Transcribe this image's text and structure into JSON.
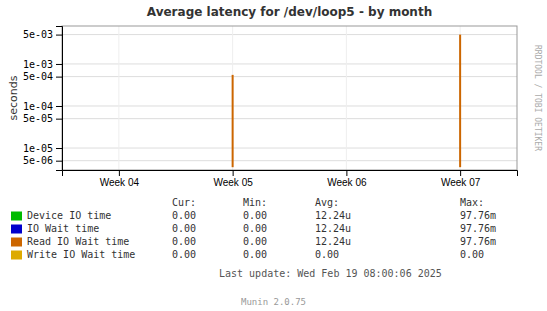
{
  "chart_data": {
    "type": "range",
    "title": "Average latency for /dev/loop5 - by month",
    "y_label": "seconds",
    "categories": [
      "Week 04",
      "Week 05",
      "Week 06",
      "Week 07"
    ],
    "series": [
      {
        "color": "#cc6600",
        "values": [
          null,
          0.00055,
          null,
          0.005
        ],
        "low": [
          null,
          3.5e-06,
          null,
          3.5e-06
        ]
      }
    ],
    "log": "y",
    "ylim": [
      3e-06,
      0.008
    ],
    "yticks": [
      {
        "value": 5e-06,
        "label": "5e-06"
      },
      {
        "value": 1e-05,
        "label": "1e-05"
      },
      {
        "value": 5e-05,
        "label": "5e-05"
      },
      {
        "value": 0.0001,
        "label": "1e-04"
      },
      {
        "value": 0.0005,
        "label": "5e-04"
      },
      {
        "value": 0.001,
        "label": "1e-03"
      },
      {
        "value": 0.005,
        "label": "5e-03"
      }
    ],
    "grid": true,
    "legend_table": {
      "headers": [
        "Cur:",
        "Min:",
        "Avg:",
        "Max:"
      ],
      "entries": [
        {
          "label": "Device IO time",
          "color": "#00bb00",
          "stats": [
            "0.00",
            "0.00",
            "12.24u",
            "97.76m"
          ]
        },
        {
          "label": "IO Wait time",
          "color": "#0000cc",
          "stats": [
            "0.00",
            "0.00",
            "12.24u",
            "97.76m"
          ]
        },
        {
          "label": "Read IO Wait time",
          "color": "#cc6600",
          "stats": [
            "0.00",
            "0.00",
            "12.24u",
            "97.76m"
          ]
        },
        {
          "label": "Write IO Wait time",
          "color": "#ddaa00",
          "stats": [
            "0.00",
            "0.00",
            "0.00",
            "0.00"
          ]
        }
      ]
    },
    "annotations": [
      "Last update: Wed Feb 19 08:00:06 2025",
      "Munin 2.0.75",
      "RRDTOOL / TOBI OETIKER"
    ]
  }
}
